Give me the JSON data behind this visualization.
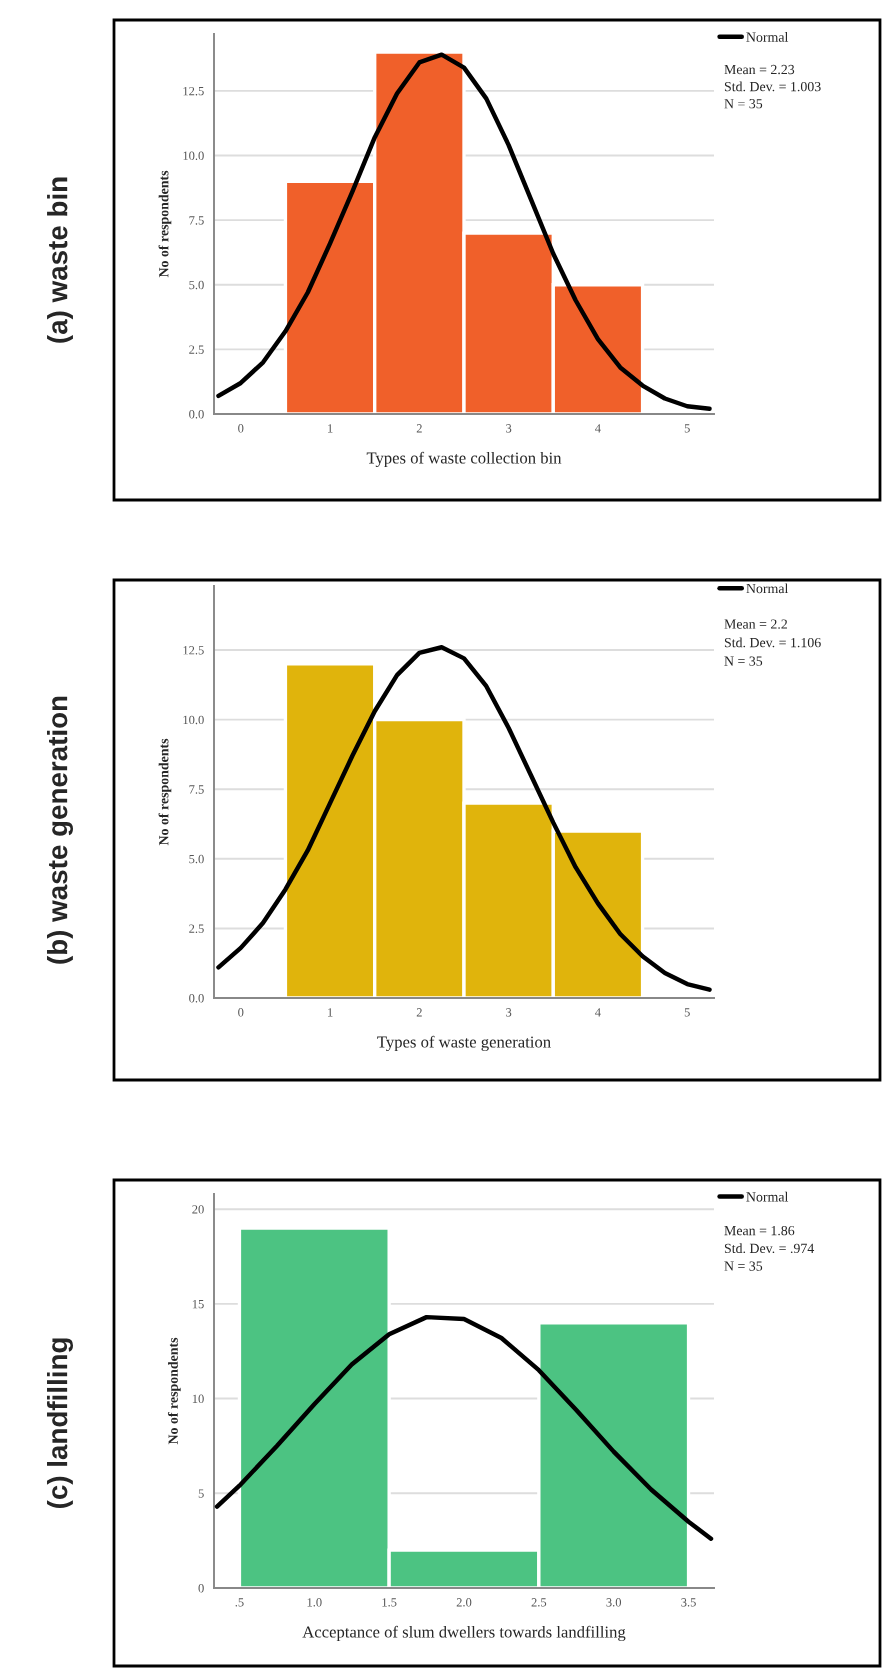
{
  "chart_data": [
    {
      "type": "histogram",
      "title": "(a) waste bin",
      "xlabel": "Types of waste collection bin",
      "ylabel": "No of respondents",
      "bins": [
        0.5,
        1.5,
        2.5,
        3.5,
        4.5
      ],
      "values": [
        9,
        14,
        7,
        5
      ],
      "color": "#f0602a",
      "series": [
        {
          "name": "Normal",
          "type": "line",
          "color": "#000000",
          "x": [
            -0.25,
            0,
            0.25,
            0.5,
            0.75,
            1.0,
            1.25,
            1.5,
            1.75,
            2.0,
            2.25,
            2.5,
            2.75,
            3.0,
            3.25,
            3.5,
            3.75,
            4.0,
            4.25,
            4.5,
            4.75,
            5.0,
            5.25
          ],
          "values": [
            0.7,
            1.2,
            2.0,
            3.2,
            4.7,
            6.6,
            8.6,
            10.7,
            12.4,
            13.6,
            13.9,
            13.4,
            12.2,
            10.4,
            8.3,
            6.2,
            4.4,
            2.9,
            1.8,
            1.1,
            0.6,
            0.3,
            0.2
          ]
        }
      ],
      "annotations": [
        "Mean = 2.23",
        "Std. Dev. = 1.003",
        "N = 35"
      ],
      "xlim": [
        -0.3,
        5.3
      ],
      "xticks": [
        0,
        1,
        2,
        3,
        4,
        5
      ],
      "ylim": [
        0,
        14.7
      ],
      "yticks": [
        {
          "value": 0,
          "label": "0.0"
        },
        {
          "value": 2.5,
          "label": "2.5"
        },
        {
          "value": 5,
          "label": "5.0"
        },
        {
          "value": 7.5,
          "label": "7.5"
        },
        {
          "value": 10,
          "label": "10.0"
        },
        {
          "value": 12.5,
          "label": "12.5"
        }
      ],
      "grid": "y",
      "legend": "top right"
    },
    {
      "type": "histogram",
      "title": "(b) waste generation",
      "xlabel": "Types of waste generation",
      "ylabel": "No of respondents",
      "bins": [
        0.5,
        1.5,
        2.5,
        3.5,
        4.5
      ],
      "values": [
        12,
        10,
        7,
        6
      ],
      "color": "#e0b40c",
      "series": [
        {
          "name": "Normal",
          "type": "line",
          "color": "#000000",
          "x": [
            -0.25,
            0,
            0.25,
            0.5,
            0.75,
            1.0,
            1.25,
            1.5,
            1.75,
            2.0,
            2.25,
            2.5,
            2.75,
            3.0,
            3.25,
            3.5,
            3.75,
            4.0,
            4.25,
            4.5,
            4.75,
            5.0,
            5.25
          ],
          "values": [
            1.1,
            1.8,
            2.7,
            3.9,
            5.3,
            7.0,
            8.7,
            10.3,
            11.6,
            12.4,
            12.6,
            12.2,
            11.2,
            9.7,
            8.0,
            6.3,
            4.7,
            3.4,
            2.3,
            1.5,
            0.9,
            0.5,
            0.3
          ]
        }
      ],
      "annotations": [
        "Mean = 2.2",
        "Std. Dev. = 1.106",
        "N = 35"
      ],
      "xlim": [
        -0.3,
        5.3
      ],
      "xticks": [
        0,
        1,
        2,
        3,
        4,
        5
      ],
      "ylim": [
        0,
        14.8
      ],
      "yticks": [
        {
          "value": 0,
          "label": "0.0"
        },
        {
          "value": 2.5,
          "label": "2.5"
        },
        {
          "value": 5,
          "label": "5.0"
        },
        {
          "value": 7.5,
          "label": "7.5"
        },
        {
          "value": 10,
          "label": "10.0"
        },
        {
          "value": 12.5,
          "label": "12.5"
        }
      ],
      "grid": "y",
      "legend": "top right"
    },
    {
      "type": "histogram",
      "title": "(c) landfilling",
      "xlabel": "Acceptance of slum dwellers towards landfilling",
      "ylabel": "No of respondents",
      "bins": [
        0.5,
        1.5,
        2.5,
        3.5
      ],
      "values": [
        19,
        2,
        14
      ],
      "color": "#4cc382",
      "series": [
        {
          "name": "Normal",
          "type": "line",
          "color": "#000000",
          "x": [
            0.35,
            0.5,
            0.75,
            1.0,
            1.25,
            1.5,
            1.75,
            2.0,
            2.25,
            2.5,
            2.75,
            3.0,
            3.25,
            3.5,
            3.65
          ],
          "values": [
            4.3,
            5.4,
            7.5,
            9.7,
            11.8,
            13.4,
            14.3,
            14.2,
            13.2,
            11.5,
            9.4,
            7.2,
            5.2,
            3.5,
            2.6
          ]
        }
      ],
      "annotations": [
        "Mean = 1.86",
        "Std. Dev. = .974",
        "N = 35"
      ],
      "xlim": [
        0.33,
        3.67
      ],
      "xticks": [
        {
          "value": 0.5,
          "label": ".5"
        },
        {
          "value": 1.0,
          "label": "1.0"
        },
        {
          "value": 1.5,
          "label": "1.5"
        },
        {
          "value": 2.0,
          "label": "2.0"
        },
        {
          "value": 2.5,
          "label": "2.5"
        },
        {
          "value": 3.0,
          "label": "3.0"
        },
        {
          "value": 3.5,
          "label": "3.5"
        }
      ],
      "ylim": [
        0,
        20.8
      ],
      "yticks": [
        0,
        5,
        10,
        15,
        20
      ],
      "grid": "y",
      "legend": "top right"
    }
  ]
}
